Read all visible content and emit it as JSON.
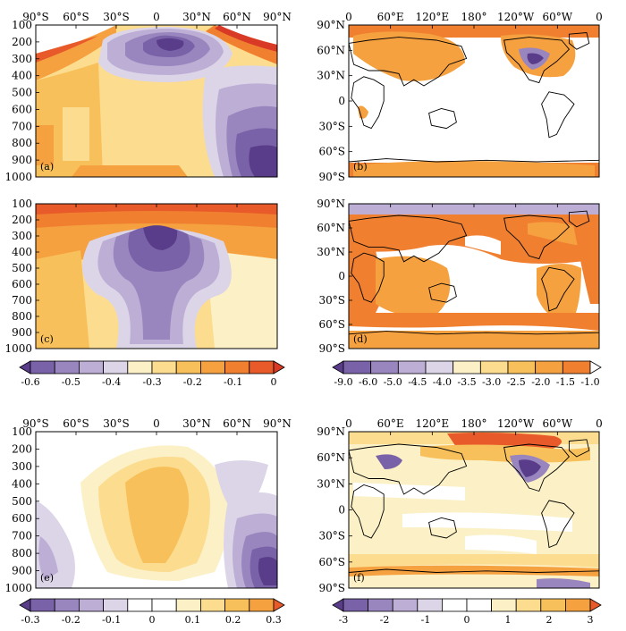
{
  "figure": {
    "zonal_y_ticks": [
      "100",
      "200",
      "300",
      "400",
      "500",
      "600",
      "700",
      "800",
      "900",
      "1000"
    ],
    "zonal_x_ticks": [
      "90°S",
      "60°S",
      "30°S",
      "0",
      "30°N",
      "60°N",
      "90°N"
    ],
    "map_x_ticks": [
      "0",
      "60°E",
      "120°E",
      "180°",
      "120°W",
      "60°W",
      "0"
    ],
    "map_y_ticks": [
      "90°N",
      "60°N",
      "30°N",
      "0",
      "30°S",
      "60°S",
      "90°S"
    ],
    "colorbars": [
      {
        "id": "cb1",
        "labels": [
          "-0.6",
          "-0.5",
          "-0.4",
          "-0.3",
          "-0.2",
          "-0.1",
          "0"
        ],
        "colors": [
          "#5a3d8a",
          "#7a62a8",
          "#9a86bf",
          "#bcaed4",
          "#dcd5e8",
          "#fbf0c6",
          "#fcdc8e",
          "#f8c05a",
          "#f5a140",
          "#f08030",
          "#e85a2a",
          "#d83a26"
        ]
      },
      {
        "id": "cb2",
        "labels": [
          "-9.0",
          "-6.0",
          "-5.0",
          "-4.5",
          "-4.0",
          "-3.5",
          "-3.0",
          "-2.5",
          "-2.0",
          "-1.5",
          "-1.0"
        ],
        "colors": [
          "#5a3d8a",
          "#7a62a8",
          "#9a86bf",
          "#bcaed4",
          "#dcd5e8",
          "#fbf0c6",
          "#fcdc8e",
          "#f8c05a",
          "#f5a140",
          "#f08030",
          "#ffffff"
        ]
      },
      {
        "id": "cb3",
        "labels": [
          "-0.3",
          "-0.2",
          "-0.1",
          "0",
          "0.1",
          "0.2",
          "0.3"
        ],
        "colors": [
          "#5a3d8a",
          "#7a62a8",
          "#9a86bf",
          "#bcaed4",
          "#dcd5e8",
          "#ffffff",
          "#ffffff",
          "#fbf0c6",
          "#fcdc8e",
          "#f8c05a",
          "#f5a140",
          "#e85a2a"
        ]
      },
      {
        "id": "cb4",
        "labels": [
          "-3",
          "-2",
          "-1",
          "0",
          "1",
          "2",
          "3"
        ],
        "colors": [
          "#5a3d8a",
          "#7a62a8",
          "#9a86bf",
          "#bcaed4",
          "#dcd5e8",
          "#ffffff",
          "#ffffff",
          "#fbf0c6",
          "#fcdc8e",
          "#f8c05a",
          "#f5a140",
          "#e85a2a"
        ]
      }
    ]
  },
  "chart_data": [
    {
      "type": "heatmap",
      "panel": "(a)",
      "x_ticks": [
        "90°S",
        "60°S",
        "30°S",
        "0",
        "30°N",
        "60°N",
        "90°N"
      ],
      "y_ticks": [
        "100",
        "200",
        "300",
        "400",
        "500",
        "600",
        "700",
        "800",
        "900",
        "1000"
      ],
      "ylim": [
        1000,
        100
      ],
      "colorbar": "cb1"
    },
    {
      "type": "heatmap",
      "panel": "(b)",
      "x_ticks": [
        "0",
        "60°E",
        "120°E",
        "180°",
        "120°W",
        "60°W",
        "0"
      ],
      "y_ticks": [
        "90°N",
        "60°N",
        "30°N",
        "0",
        "30°S",
        "60°S",
        "90°S"
      ],
      "colorbar": "cb2"
    },
    {
      "type": "heatmap",
      "panel": "(c)",
      "x_ticks": [
        "90°S",
        "60°S",
        "30°S",
        "0",
        "30°N",
        "60°N",
        "90°N"
      ],
      "y_ticks": [
        "100",
        "200",
        "300",
        "400",
        "500",
        "600",
        "700",
        "800",
        "900",
        "1000"
      ],
      "ylim": [
        1000,
        100
      ],
      "colorbar": "cb1"
    },
    {
      "type": "heatmap",
      "panel": "(d)",
      "x_ticks": [
        "0",
        "60°E",
        "120°E",
        "180°",
        "120°W",
        "60°W",
        "0"
      ],
      "y_ticks": [
        "90°N",
        "60°N",
        "30°N",
        "0",
        "30°S",
        "60°S",
        "90°S"
      ],
      "colorbar": "cb2"
    },
    {
      "type": "heatmap",
      "panel": "(e)",
      "x_ticks": [
        "90°S",
        "60°S",
        "30°S",
        "0",
        "30°N",
        "60°N",
        "90°N"
      ],
      "y_ticks": [
        "100",
        "200",
        "300",
        "400",
        "500",
        "600",
        "700",
        "800",
        "900",
        "1000"
      ],
      "ylim": [
        1000,
        100
      ],
      "colorbar": "cb3"
    },
    {
      "type": "heatmap",
      "panel": "(f)",
      "x_ticks": [
        "0",
        "60°E",
        "120°E",
        "180°",
        "120°W",
        "60°W",
        "0"
      ],
      "y_ticks": [
        "90°N",
        "60°N",
        "30°N",
        "0",
        "30°S",
        "60°S",
        "90°S"
      ],
      "colorbar": "cb4"
    }
  ]
}
